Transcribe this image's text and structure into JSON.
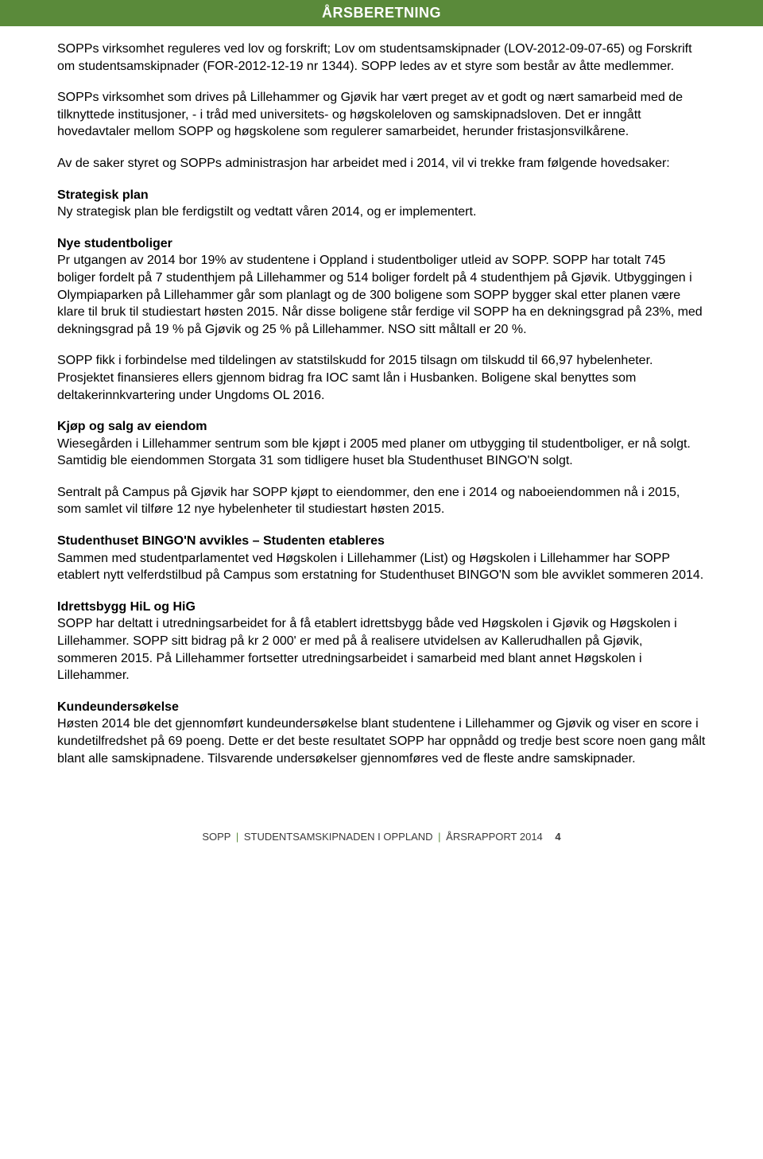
{
  "banner": "ÅRSBERETNING",
  "paragraphs": {
    "p1": "SOPPs virksomhet reguleres ved lov og forskrift; Lov om studentsamskipnader (LOV-2012-09-07-65) og Forskrift om studentsamskipnader (FOR-2012-12-19 nr 1344). SOPP ledes av et styre som består av åtte medlemmer.",
    "p2": "SOPPs virksomhet som drives på Lillehammer og Gjøvik har vært preget av et godt og nært samarbeid med de tilknyttede institusjoner, - i tråd med universitets- og høgskoleloven og samskipnadsloven. Det er inngått hovedavtaler mellom SOPP og høgskolene som regulerer samarbeidet, herunder fristasjonsvilkårene.",
    "p3": "Av de saker styret og SOPPs administrasjon har arbeidet med i 2014, vil vi trekke fram følgende hovedsaker:",
    "strategisk_title": "Strategisk plan",
    "strategisk_body": "Ny strategisk plan ble ferdigstilt og vedtatt våren 2014, og er implementert.",
    "nye_title": "Nye studentboliger",
    "nye_body1": "Pr utgangen av 2014 bor 19% av studentene i Oppland i studentboliger utleid av SOPP. SOPP har totalt 745 boliger fordelt på 7 studenthjem på Lillehammer og 514 boliger fordelt på 4 studenthjem på Gjøvik. Utbyggingen i Olympiaparken på Lillehammer går som planlagt og de 300 boligene som SOPP bygger skal etter planen være klare til bruk til studiestart høsten 2015. Når disse boligene står ferdige vil SOPP ha en dekningsgrad på 23%, med dekningsgrad på 19 % på Gjøvik og 25 % på Lillehammer. NSO sitt måltall er 20 %.",
    "nye_body2": "SOPP fikk i forbindelse med tildelingen av statstilskudd for 2015 tilsagn om tilskudd til 66,97 hybelenheter. Prosjektet finansieres ellers gjennom bidrag fra IOC samt lån i Husbanken. Boligene skal benyttes som deltakerinnkvartering under Ungdoms OL 2016.",
    "kjop_title": "Kjøp og salg av eiendom",
    "kjop_body1": "Wiesegården i Lillehammer sentrum som ble kjøpt i 2005 med planer om utbygging til studentboliger, er nå solgt. Samtidig ble eiendommen Storgata 31 som tidligere huset bla Studenthuset BINGO'N solgt.",
    "kjop_body2": "Sentralt på Campus på Gjøvik har SOPP kjøpt to eiendommer, den ene i 2014 og naboeiendommen nå i 2015, som samlet vil tilføre 12 nye hybelenheter til studiestart høsten 2015.",
    "bingo_title": "Studenthuset BINGO'N avvikles – Studenten etableres",
    "bingo_body": "Sammen med studentparlamentet ved Høgskolen i Lillehammer (List) og Høgskolen i Lillehammer har SOPP etablert nytt velferdstilbud på Campus som erstatning for Studenthuset BINGO'N som ble avviklet sommeren 2014.",
    "idrett_title": "Idrettsbygg HiL og HiG",
    "idrett_body": "SOPP har deltatt i utredningsarbeidet for å få etablert idrettsbygg både ved Høgskolen i Gjøvik og Høgskolen i Lillehammer.  SOPP sitt bidrag på kr 2 000' er med på å realisere utvidelsen av Kallerudhallen på Gjøvik, sommeren 2015.  På Lillehammer fortsetter utredningsarbeidet i samarbeid med blant annet Høgskolen i Lillehammer.",
    "kunde_title": "Kundeundersøkelse",
    "kunde_body": "Høsten 2014 ble det gjennomført kundeundersøkelse blant studentene i Lillehammer og Gjøvik og viser en score i kundetilfredshet på 69 poeng. Dette er det beste resultatet SOPP har oppnådd og tredje best score noen gang målt blant alle samskipnadene. Tilsvarende undersøkelser gjennomføres ved de fleste andre samskipnader."
  },
  "footer": {
    "left": "SOPP",
    "mid": "STUDENTSAMSKIPNADEN I OPPLAND",
    "right": "ÅRSRAPPORT 2014",
    "pagenum": "4"
  }
}
